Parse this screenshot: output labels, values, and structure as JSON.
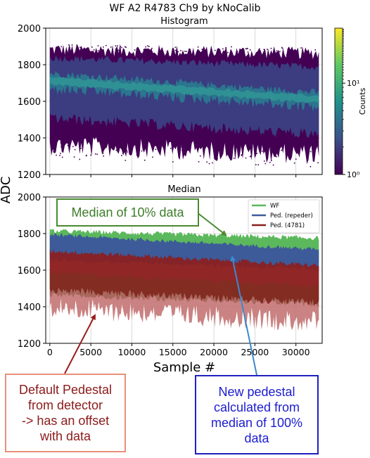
{
  "figure": {
    "suptitle": "WF A2 R4783 Ch9 by kNoCalib",
    "ylabel": "ADC",
    "xlabel": "Sample #"
  },
  "chart_data": [
    {
      "type": "heatmap",
      "title": "Histogram",
      "xlim": [
        -500,
        33200
      ],
      "ylim": [
        1200,
        2000
      ],
      "yticks": [
        "1200",
        "1400",
        "1600",
        "1800",
        "2000"
      ],
      "grid": true,
      "colorbar": {
        "label": "Counts",
        "scale": "log",
        "ticks": [
          "10⁰",
          "10¹"
        ],
        "range": [
          1,
          40
        ],
        "colormap": [
          "#440154",
          "#3b528b",
          "#21918c",
          "#5ec962",
          "#fde725"
        ]
      },
      "bands": [
        {
          "name": "outer",
          "x": [
            0,
            32800
          ],
          "upper": [
            1870,
            1850
          ],
          "lower": [
            1380,
            1330
          ],
          "color": "#440154"
        },
        {
          "name": "mid",
          "x": [
            0,
            32800
          ],
          "upper": [
            1830,
            1780
          ],
          "lower": [
            1520,
            1430
          ],
          "color": "#3b3d80"
        },
        {
          "name": "core",
          "x": [
            0,
            32800
          ],
          "upper": [
            1745,
            1640
          ],
          "lower": [
            1680,
            1580
          ],
          "color": "#2a788e"
        }
      ]
    },
    {
      "type": "area",
      "title": "Median",
      "xlim": [
        -500,
        33200
      ],
      "ylim": [
        1200,
        2000
      ],
      "xticks": [
        "0",
        "5000",
        "10000",
        "15000",
        "20000",
        "25000",
        "30000"
      ],
      "yticks": [
        "1200",
        "1400",
        "1600",
        "1800",
        "2000"
      ],
      "grid": true,
      "legend": "top-right",
      "series": [
        {
          "name": "WF",
          "color": "#5cb85c",
          "x": [
            0,
            32800
          ],
          "upper": [
            1810,
            1770
          ],
          "lower": [
            1690,
            1650
          ]
        },
        {
          "name": "Ped. (repeder)",
          "color": "#3d5a99",
          "x": [
            0,
            32800
          ],
          "upper": [
            1790,
            1710
          ],
          "lower": [
            1660,
            1610
          ]
        },
        {
          "name": "Ped. (4781)",
          "color": "#8b1e1e",
          "x": [
            0,
            32800
          ],
          "upper": [
            1700,
            1620
          ],
          "lower": [
            1430,
            1350
          ],
          "fringe": "#c47474"
        }
      ]
    }
  ],
  "callouts": {
    "median": "Median of 10% data",
    "default": "Default Pedestal\nfrom detector\n-> has an offset\nwith data",
    "new": "New pedestal\ncalculated from\nmedian of 100%\ndata"
  },
  "colors": {
    "green_arrow": "#4a8a30",
    "red_arrow": "#9b1b1b",
    "blue_arrow": "#3a8ad0"
  }
}
